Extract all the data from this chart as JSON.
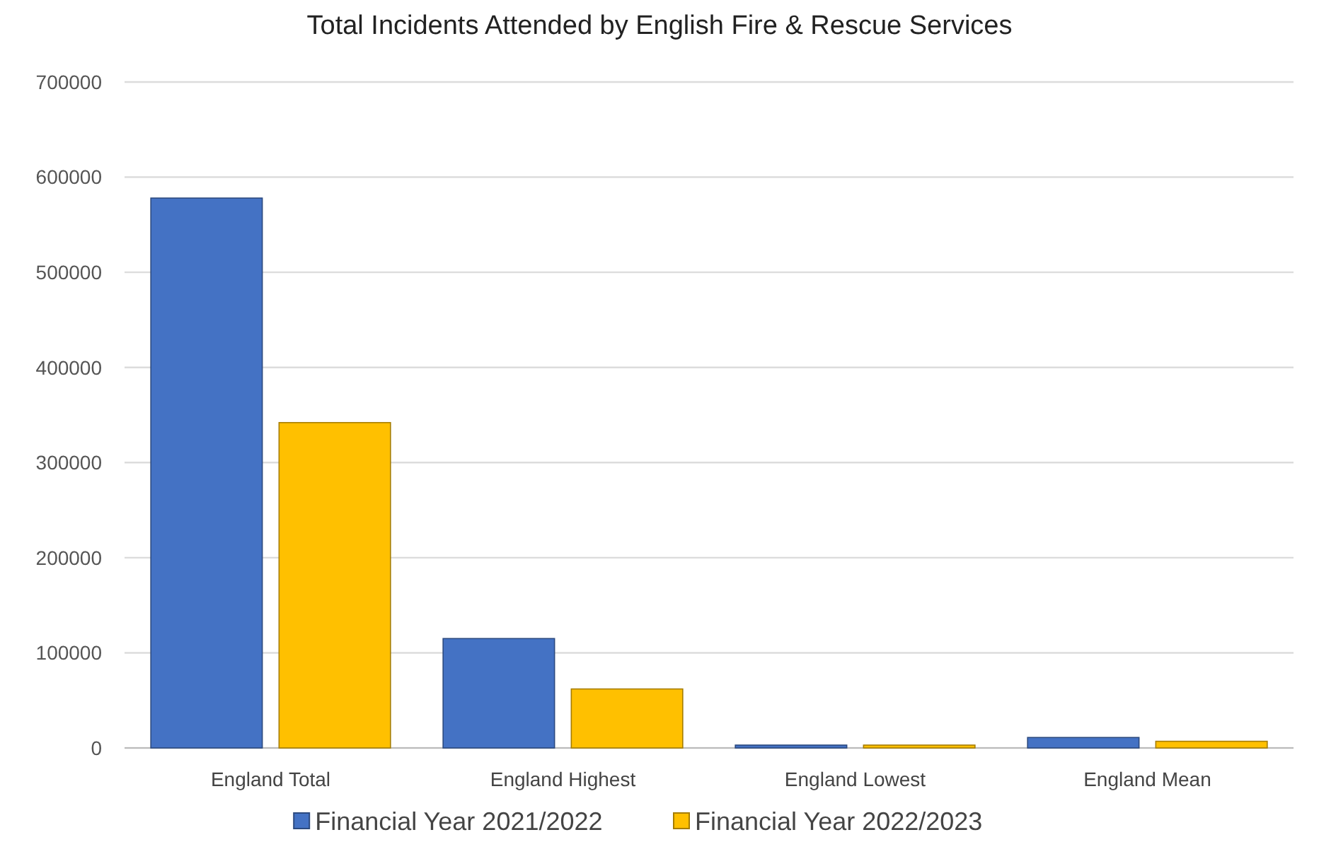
{
  "chart_data": {
    "type": "bar",
    "title": "Total Incidents Attended by English Fire & Rescue Services",
    "categories": [
      "England Total",
      "England Highest",
      "England Lowest",
      "England Mean"
    ],
    "series": [
      {
        "name": "Financial Year 2021/2022",
        "color": "#4472c4",
        "values": [
          578000,
          115000,
          3000,
          11000
        ]
      },
      {
        "name": "Financial Year 2022/2023",
        "color": "#ffc000",
        "values": [
          342000,
          62000,
          3000,
          7000
        ]
      }
    ],
    "ylim": [
      0,
      700000
    ],
    "yticks": [
      0,
      100000,
      200000,
      300000,
      400000,
      500000,
      600000,
      700000
    ],
    "grid": "y",
    "legend": "bottom"
  }
}
